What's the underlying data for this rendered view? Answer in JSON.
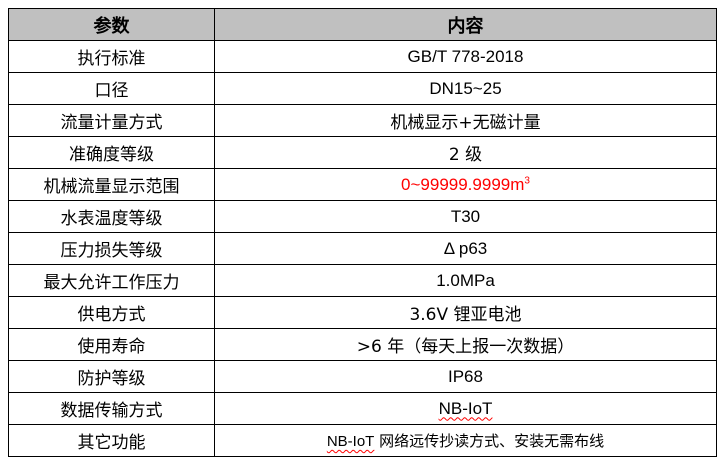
{
  "header": {
    "param": "参数",
    "content": "内容"
  },
  "rows": [
    {
      "param": "执行标准",
      "value": "GB/T 778-2018"
    },
    {
      "param": "口径",
      "value": "DN15~25"
    },
    {
      "param": "流量计量方式",
      "value": "机械显示+无磁计量"
    },
    {
      "param": "准确度等级",
      "value": "2 级"
    },
    {
      "param": "机械流量显示范围",
      "value": "0~99999.9999m",
      "value_sup": "3",
      "value_color": "#ff0000"
    },
    {
      "param": "水表温度等级",
      "value": "T30"
    },
    {
      "param": "压力损失等级",
      "value": "Δ p63"
    },
    {
      "param": "最大允许工作压力",
      "value": "1.0MPa"
    },
    {
      "param": "供电方式",
      "value": "3.6V 锂亚电池"
    },
    {
      "param": "使用寿命",
      "value": ">6 年（每天上报一次数据）"
    },
    {
      "param": "防护等级",
      "value": "IP68"
    },
    {
      "param": "数据传输方式",
      "value": "NB-IoT"
    },
    {
      "param": "其它功能",
      "value_prefix": "NB-IoT",
      "value": " 网络远传抄读方式、安装无需布线"
    }
  ],
  "colors": {
    "header_bg": "#c0c0c0",
    "highlight": "#ff0000"
  }
}
